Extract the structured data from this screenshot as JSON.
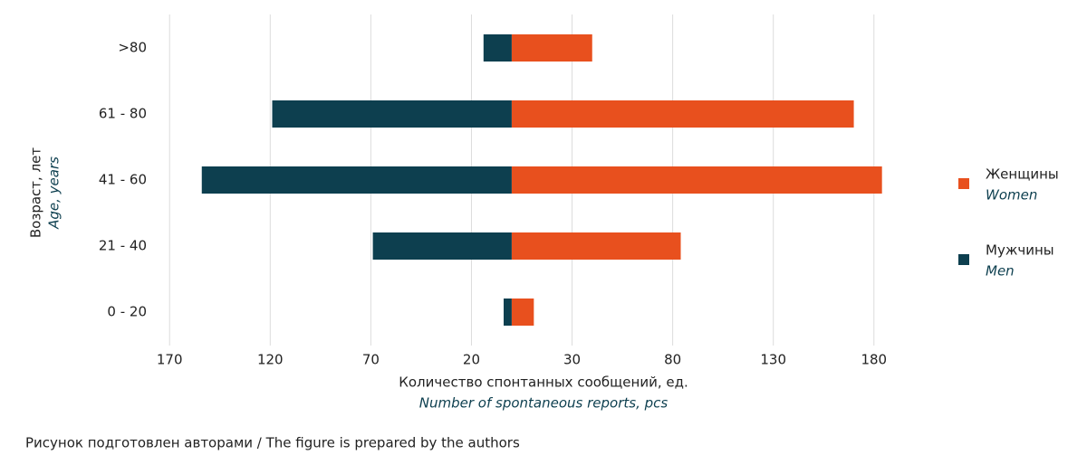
{
  "chart_data": {
    "type": "butterfly-bar",
    "ylabel": "Возраст, лет",
    "ylabel_en": "Age, years",
    "xlabel": "Количество спонтанных сообщений, ед.",
    "xlabel_en": "Number of spontaneous reports, pcs",
    "categories": [
      ">80",
      "61 - 80",
      "41 - 60",
      "21 - 40",
      "0 - 20"
    ],
    "series": [
      {
        "name": "Женщины",
        "name_en": "Women",
        "color": "#e8501e",
        "values": [
          40,
          170,
          184,
          84,
          11
        ]
      },
      {
        "name": "Мужчины",
        "name_en": "Men",
        "color": "#0d3f4f",
        "values": [
          -14,
          -119,
          -154,
          -69,
          -4
        ]
      }
    ],
    "xlim": [
      -180,
      190
    ],
    "xticks": [
      {
        "value": -170,
        "label": "170"
      },
      {
        "value": -120,
        "label": "120"
      },
      {
        "value": -70,
        "label": "70"
      },
      {
        "value": -20,
        "label": "20"
      },
      30,
      80,
      130,
      180
    ],
    "grid": true,
    "footnote": "Рисунок подготовлен авторами / The figure is prepared by the authors"
  }
}
